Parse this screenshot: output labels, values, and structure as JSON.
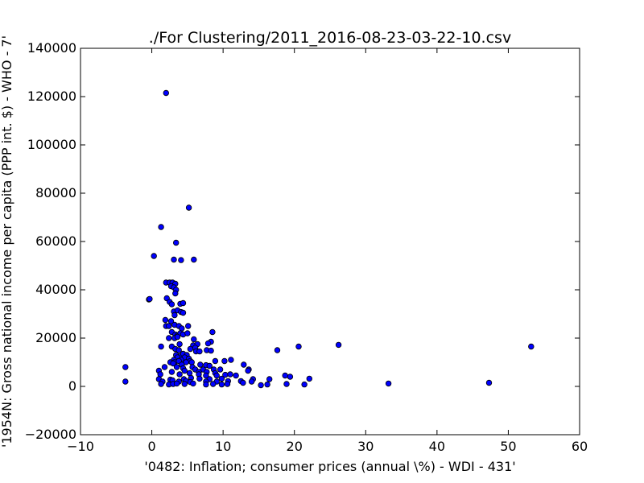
{
  "chart_data": {
    "type": "scatter",
    "title": "./For Clustering/2011_2016-08-23-03-22-10.csv",
    "xlabel": "'0482: Inflation; consumer prices  (annual \\%) - WDI - 431'",
    "ylabel": "'1954N: Gross national income per capita (PPP int. $) - WHO - 7'",
    "xlim": [
      -10,
      60
    ],
    "ylim": [
      -20000,
      140000
    ],
    "xticks": [
      -10,
      0,
      10,
      20,
      30,
      40,
      50,
      60
    ],
    "yticks": [
      -20000,
      0,
      20000,
      40000,
      60000,
      80000,
      100000,
      120000,
      140000
    ],
    "xtick_labels": [
      "−10",
      "0",
      "10",
      "20",
      "30",
      "40",
      "50",
      "60"
    ],
    "ytick_labels": [
      "−20000",
      "0",
      "20000",
      "40000",
      "60000",
      "80000",
      "100000",
      "120000",
      "140000"
    ],
    "grid": false,
    "marker_color": "#0000ff",
    "points": [
      [
        2.0,
        121500
      ],
      [
        5.2,
        74000
      ],
      [
        1.3,
        66000
      ],
      [
        3.4,
        59500
      ],
      [
        0.3,
        54000
      ],
      [
        3.1,
        52500
      ],
      [
        4.1,
        52300
      ],
      [
        5.9,
        52500
      ],
      [
        2.0,
        43000
      ],
      [
        2.5,
        43000
      ],
      [
        2.9,
        43000
      ],
      [
        3.3,
        42500
      ],
      [
        2.7,
        41500
      ],
      [
        3.1,
        41000
      ],
      [
        3.4,
        40000
      ],
      [
        3.3,
        38500
      ],
      [
        -0.4,
        36000
      ],
      [
        -0.3,
        36200
      ],
      [
        2.1,
        36500
      ],
      [
        2.5,
        35000
      ],
      [
        2.8,
        34000
      ],
      [
        4.0,
        34200
      ],
      [
        4.4,
        34500
      ],
      [
        3.1,
        31000
      ],
      [
        3.6,
        31500
      ],
      [
        4.1,
        30800
      ],
      [
        4.4,
        30500
      ],
      [
        3.2,
        29500
      ],
      [
        1.9,
        27500
      ],
      [
        2.7,
        27000
      ],
      [
        3.2,
        25500
      ],
      [
        2.0,
        25000
      ],
      [
        2.4,
        25000
      ],
      [
        3.8,
        25000
      ],
      [
        4.2,
        24000
      ],
      [
        5.1,
        25000
      ],
      [
        8.5,
        22500
      ],
      [
        2.8,
        22500
      ],
      [
        3.3,
        21500
      ],
      [
        3.6,
        21000
      ],
      [
        4.0,
        22000
      ],
      [
        4.4,
        21500
      ],
      [
        5.0,
        22000
      ],
      [
        2.4,
        20000
      ],
      [
        3.2,
        20000
      ],
      [
        3.6,
        20500
      ],
      [
        5.9,
        19500
      ],
      [
        8.3,
        18500
      ],
      [
        1.3,
        16500
      ],
      [
        2.8,
        16500
      ],
      [
        3.9,
        17500
      ],
      [
        5.8,
        17000
      ],
      [
        6.4,
        17500
      ],
      [
        7.9,
        17800
      ],
      [
        6.1,
        16000
      ],
      [
        5.4,
        15500
      ],
      [
        3.3,
        15500
      ],
      [
        3.8,
        15000
      ],
      [
        6.2,
        14500
      ],
      [
        6.7,
        14500
      ],
      [
        7.7,
        15000
      ],
      [
        8.3,
        14800
      ],
      [
        17.6,
        15000
      ],
      [
        20.6,
        16500
      ],
      [
        26.2,
        17200
      ],
      [
        53.2,
        16500
      ],
      [
        3.4,
        13000
      ],
      [
        4.0,
        12500
      ],
      [
        4.4,
        13500
      ],
      [
        4.9,
        13000
      ],
      [
        3.6,
        12000
      ],
      [
        4.6,
        12000
      ],
      [
        5.2,
        11500
      ],
      [
        3.1,
        11000
      ],
      [
        4.1,
        11000
      ],
      [
        5.4,
        10500
      ],
      [
        2.6,
        10000
      ],
      [
        3.2,
        10000
      ],
      [
        3.8,
        10500
      ],
      [
        4.8,
        10000
      ],
      [
        5.6,
        10000
      ],
      [
        8.9,
        10500
      ],
      [
        10.2,
        10500
      ],
      [
        11.1,
        11000
      ],
      [
        3.0,
        9500
      ],
      [
        4.2,
        9000
      ],
      [
        6.8,
        9000
      ],
      [
        7.6,
        8800
      ],
      [
        8.1,
        8500
      ],
      [
        12.9,
        9000
      ],
      [
        -3.7,
        8000
      ],
      [
        1.8,
        8000
      ],
      [
        3.5,
        8000
      ],
      [
        4.4,
        7500
      ],
      [
        5.7,
        8000
      ],
      [
        6.1,
        7000
      ],
      [
        7.2,
        7000
      ],
      [
        8.7,
        7000
      ],
      [
        9.6,
        7000
      ],
      [
        13.6,
        7000
      ],
      [
        13.5,
        6500
      ],
      [
        1.0,
        6500
      ],
      [
        2.8,
        6000
      ],
      [
        4.6,
        6500
      ],
      [
        6.6,
        6000
      ],
      [
        7.7,
        6000
      ],
      [
        8.9,
        5500
      ],
      [
        1.2,
        5000
      ],
      [
        3.9,
        5000
      ],
      [
        5.3,
        5500
      ],
      [
        6.6,
        5000
      ],
      [
        7.6,
        4500
      ],
      [
        9.1,
        4500
      ],
      [
        10.3,
        4800
      ],
      [
        11.0,
        5000
      ],
      [
        11.8,
        4500
      ],
      [
        18.7,
        4500
      ],
      [
        19.4,
        4000
      ],
      [
        1.0,
        3000
      ],
      [
        2.6,
        2800
      ],
      [
        4.5,
        3000
      ],
      [
        5.5,
        3500
      ],
      [
        6.7,
        3200
      ],
      [
        8.1,
        3000
      ],
      [
        9.8,
        3200
      ],
      [
        14.2,
        3000
      ],
      [
        16.5,
        3000
      ],
      [
        22.1,
        3200
      ],
      [
        -3.7,
        2000
      ],
      [
        1.5,
        2000
      ],
      [
        2.9,
        2500
      ],
      [
        3.8,
        2000
      ],
      [
        4.8,
        2200
      ],
      [
        5.4,
        1800
      ],
      [
        7.6,
        2000
      ],
      [
        9.1,
        2000
      ],
      [
        10.7,
        2200
      ],
      [
        12.5,
        2200
      ],
      [
        14.0,
        2000
      ],
      [
        33.2,
        1200
      ],
      [
        47.3,
        1500
      ],
      [
        1.3,
        1000
      ],
      [
        2.4,
        800
      ],
      [
        3.0,
        1000
      ],
      [
        3.5,
        1200
      ],
      [
        4.6,
        1000
      ],
      [
        5.8,
        1200
      ],
      [
        7.6,
        800
      ],
      [
        8.6,
        1000
      ],
      [
        9.8,
        800
      ],
      [
        10.6,
        1000
      ],
      [
        12.8,
        1500
      ],
      [
        15.3,
        500
      ],
      [
        16.2,
        800
      ],
      [
        18.9,
        1000
      ],
      [
        21.4,
        800
      ]
    ]
  }
}
